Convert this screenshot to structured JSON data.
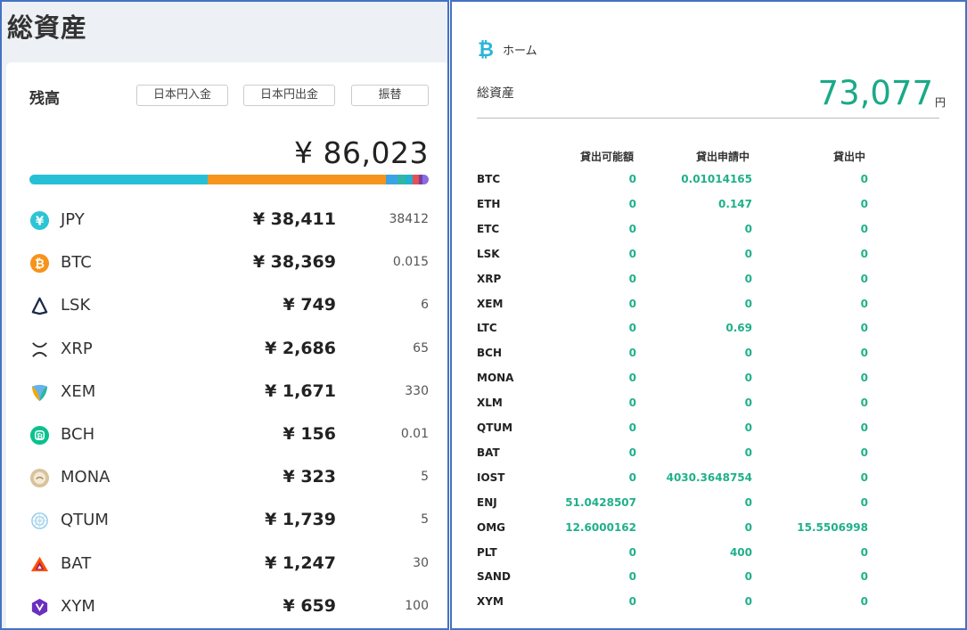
{
  "left": {
    "title": "総資産",
    "balance_label": "残高",
    "buttons": {
      "deposit": "日本円入金",
      "withdraw": "日本円出金",
      "transfer": "振替"
    },
    "total": "¥ 86,023",
    "bar_colors": [
      "#26c0d6",
      "#f7941d",
      "#3aa3e3",
      "#2fb6a8",
      "#21b0d0",
      "#e94f4f",
      "#7b3fa0",
      "#8a6be0"
    ],
    "bar_fractions": [
      0.4465,
      0.446,
      0.029,
      0.02,
      0.018,
      0.015,
      0.009,
      0.0165
    ],
    "assets": [
      {
        "symbol": "JPY",
        "jpy": "¥ 38,411",
        "amount": "38412",
        "icon": "yen-icon"
      },
      {
        "symbol": "BTC",
        "jpy": "¥ 38,369",
        "amount": "0.015",
        "icon": "bitcoin-icon"
      },
      {
        "symbol": "LSK",
        "jpy": "¥ 749",
        "amount": "6",
        "icon": "lisk-icon"
      },
      {
        "symbol": "XRP",
        "jpy": "¥ 2,686",
        "amount": "65",
        "icon": "xrp-icon"
      },
      {
        "symbol": "XEM",
        "jpy": "¥ 1,671",
        "amount": "330",
        "icon": "nem-icon"
      },
      {
        "symbol": "BCH",
        "jpy": "¥ 156",
        "amount": "0.01",
        "icon": "bitcoin-cash-icon"
      },
      {
        "symbol": "MONA",
        "jpy": "¥ 323",
        "amount": "5",
        "icon": "monacoin-icon"
      },
      {
        "symbol": "QTUM",
        "jpy": "¥ 1,739",
        "amount": "5",
        "icon": "qtum-icon"
      },
      {
        "symbol": "BAT",
        "jpy": "¥ 1,247",
        "amount": "30",
        "icon": "bat-icon"
      },
      {
        "symbol": "XYM",
        "jpy": "¥ 659",
        "amount": "100",
        "icon": "symbol-icon"
      }
    ]
  },
  "right": {
    "home_label": "ホーム",
    "total_assets_label": "総資産",
    "total_assets_value": "73,077",
    "total_assets_unit": "円",
    "columns": [
      "貸出可能額",
      "貸出申請中",
      "貸出中"
    ],
    "rows": [
      {
        "symbol": "BTC",
        "available": "0",
        "requested": "0.01014165",
        "lending": "0"
      },
      {
        "symbol": "ETH",
        "available": "0",
        "requested": "0.147",
        "lending": "0"
      },
      {
        "symbol": "ETC",
        "available": "0",
        "requested": "0",
        "lending": "0"
      },
      {
        "symbol": "LSK",
        "available": "0",
        "requested": "0",
        "lending": "0"
      },
      {
        "symbol": "XRP",
        "available": "0",
        "requested": "0",
        "lending": "0"
      },
      {
        "symbol": "XEM",
        "available": "0",
        "requested": "0",
        "lending": "0"
      },
      {
        "symbol": "LTC",
        "available": "0",
        "requested": "0.69",
        "lending": "0"
      },
      {
        "symbol": "BCH",
        "available": "0",
        "requested": "0",
        "lending": "0"
      },
      {
        "symbol": "MONA",
        "available": "0",
        "requested": "0",
        "lending": "0"
      },
      {
        "symbol": "XLM",
        "available": "0",
        "requested": "0",
        "lending": "0"
      },
      {
        "symbol": "QTUM",
        "available": "0",
        "requested": "0",
        "lending": "0"
      },
      {
        "symbol": "BAT",
        "available": "0",
        "requested": "0",
        "lending": "0"
      },
      {
        "symbol": "IOST",
        "available": "0",
        "requested": "4030.3648754",
        "lending": "0"
      },
      {
        "symbol": "ENJ",
        "available": "51.0428507",
        "requested": "0",
        "lending": "0"
      },
      {
        "symbol": "OMG",
        "available": "12.6000162",
        "requested": "0",
        "lending": "15.5506998"
      },
      {
        "symbol": "PLT",
        "available": "0",
        "requested": "400",
        "lending": "0"
      },
      {
        "symbol": "SAND",
        "available": "0",
        "requested": "0",
        "lending": "0"
      },
      {
        "symbol": "XYM",
        "available": "0",
        "requested": "0",
        "lending": "0"
      }
    ]
  }
}
